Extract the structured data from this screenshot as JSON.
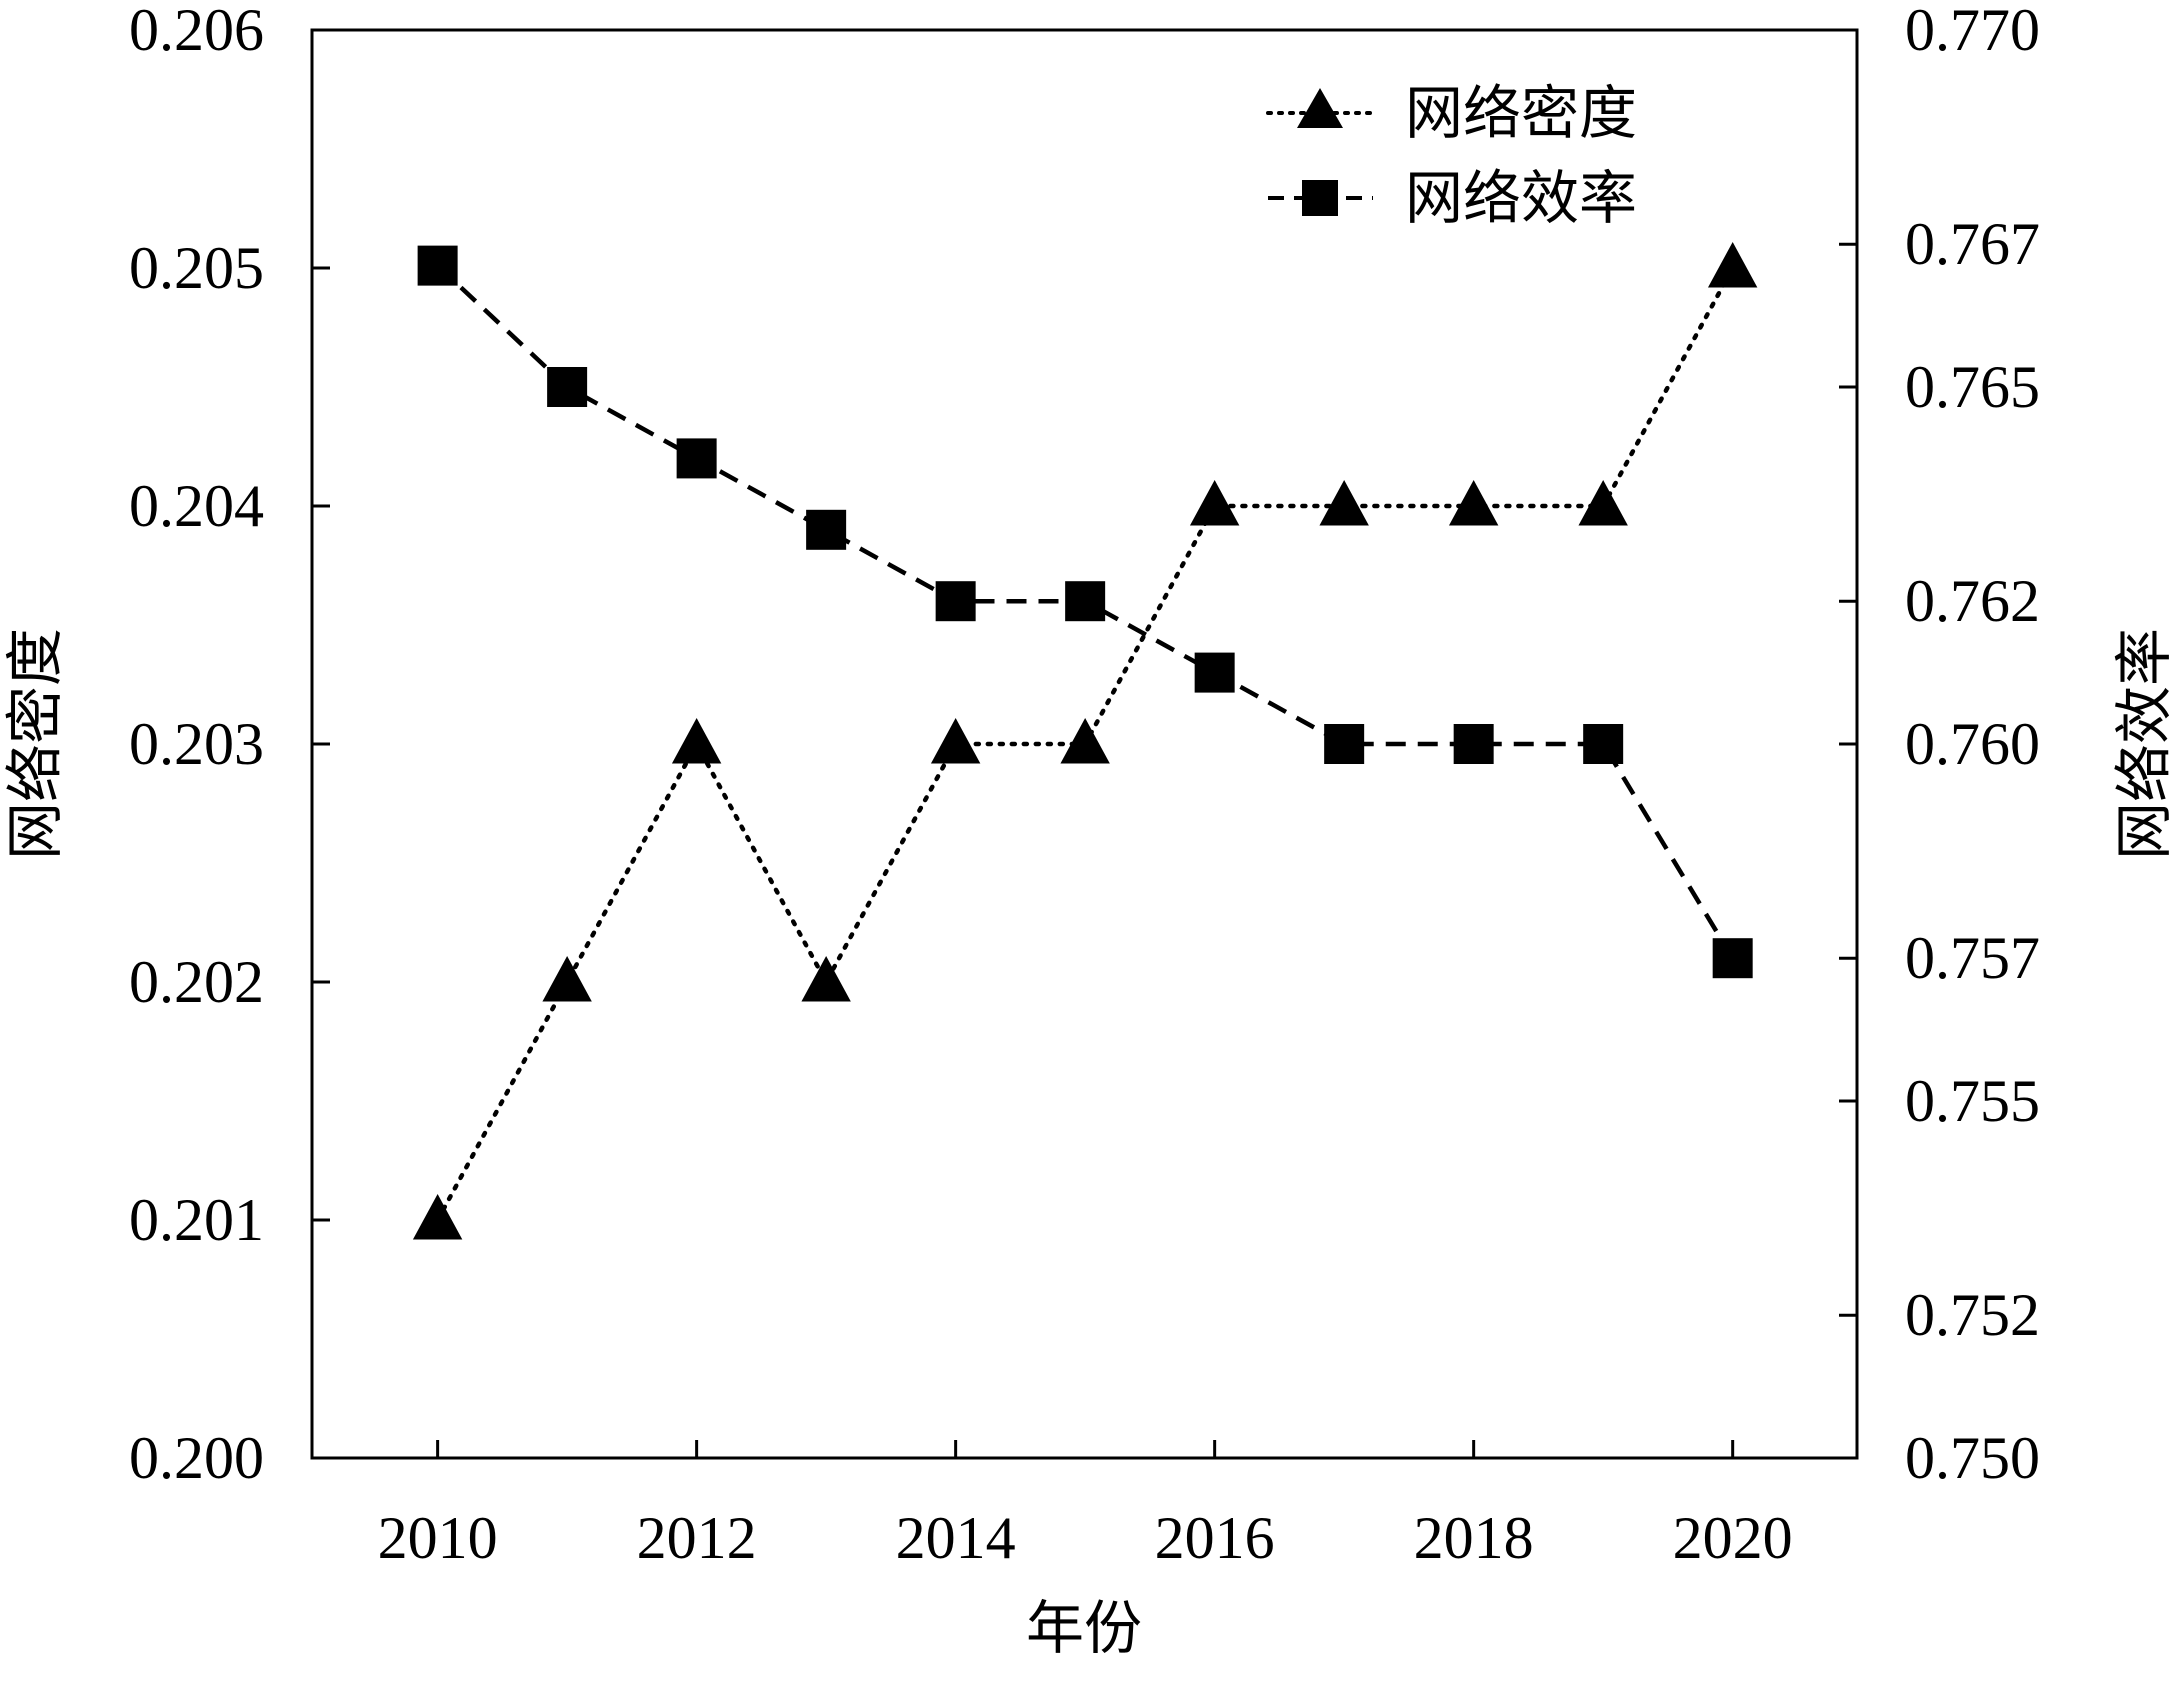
{
  "chart_data": {
    "type": "line",
    "x": [
      2010,
      2011,
      2012,
      2013,
      2014,
      2015,
      2016,
      2017,
      2018,
      2019,
      2020
    ],
    "x_ticks": [
      "2010",
      "2012",
      "2014",
      "2016",
      "2018",
      "2020"
    ],
    "xlabel": "年份",
    "y_left": {
      "label": "网络密度",
      "range": [
        0.2,
        0.206
      ],
      "ticks": [
        "0.200",
        "0.201",
        "0.202",
        "0.203",
        "0.204",
        "0.205",
        "0.206"
      ]
    },
    "y_right": {
      "label": "网络效率",
      "range": [
        0.75,
        0.77
      ],
      "ticks": [
        "0.750",
        "0.752",
        "0.755",
        "0.757",
        "0.760",
        "0.762",
        "0.765",
        "0.767",
        "0.770"
      ]
    },
    "series": [
      {
        "name": "网络密度",
        "axis": "left",
        "marker": "triangle",
        "line_style": "dotted",
        "values": [
          0.201,
          0.202,
          0.203,
          0.202,
          0.203,
          0.203,
          0.204,
          0.204,
          0.204,
          0.204,
          0.205
        ]
      },
      {
        "name": "网络效率",
        "axis": "right",
        "marker": "square",
        "line_style": "dashed",
        "values": [
          0.7667,
          0.765,
          0.764,
          0.763,
          0.762,
          0.762,
          0.761,
          0.76,
          0.76,
          0.76,
          0.757
        ]
      }
    ],
    "legend_position": "top-right",
    "grid": false,
    "colors": {
      "line": "#000000",
      "background": "#ffffff"
    }
  }
}
